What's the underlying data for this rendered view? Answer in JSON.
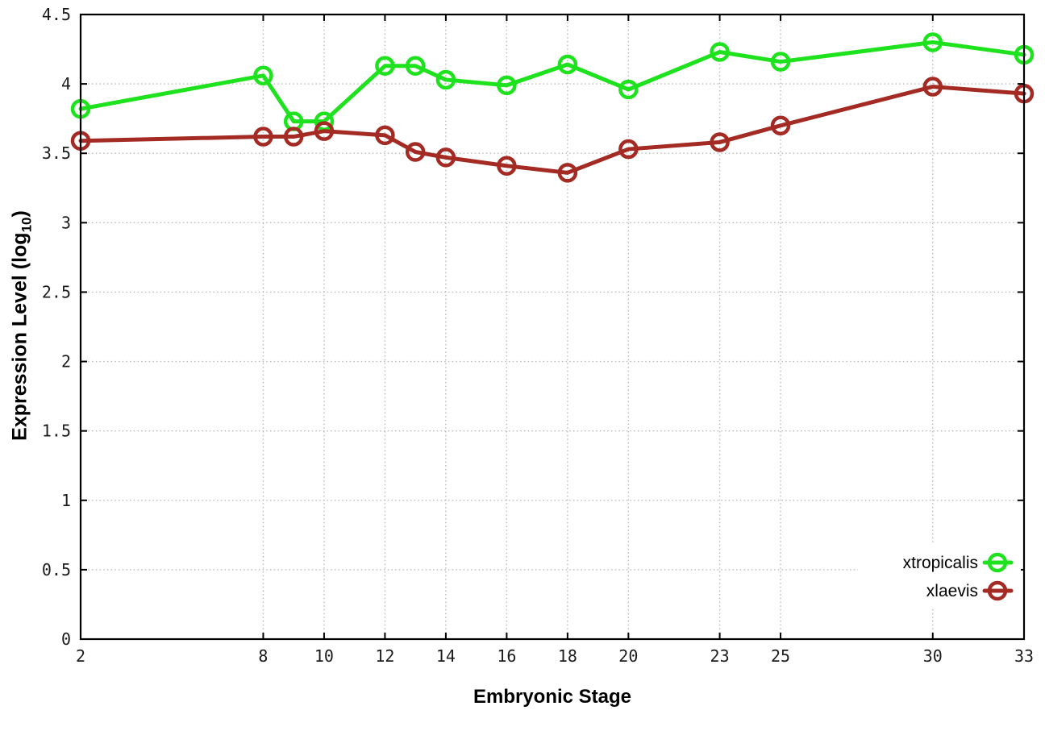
{
  "chart_data": {
    "type": "line",
    "title": "",
    "xlabel": "Embryonic Stage",
    "ylabel": {
      "prefix": "Expression Level (log",
      "sub": "10",
      "suffix": ")"
    },
    "xlim": [
      2,
      33
    ],
    "ylim": [
      0,
      4.5
    ],
    "grid": true,
    "legend_position": "bottom-right",
    "x_ticks": [
      {
        "v": 2,
        "label": "2"
      },
      {
        "v": 8,
        "label": "8"
      },
      {
        "v": 10,
        "label": "10"
      },
      {
        "v": 12,
        "label": "12"
      },
      {
        "v": 14,
        "label": "14"
      },
      {
        "v": 16,
        "label": "16"
      },
      {
        "v": 18,
        "label": "18"
      },
      {
        "v": 20,
        "label": "20"
      },
      {
        "v": 23,
        "label": "23"
      },
      {
        "v": 25,
        "label": "25"
      },
      {
        "v": 30,
        "label": "30"
      },
      {
        "v": 33,
        "label": "33"
      }
    ],
    "y_ticks": [
      {
        "v": 0,
        "label": "0"
      },
      {
        "v": 0.5,
        "label": "0.5"
      },
      {
        "v": 1,
        "label": "1"
      },
      {
        "v": 1.5,
        "label": "1.5"
      },
      {
        "v": 2,
        "label": "2"
      },
      {
        "v": 2.5,
        "label": "2.5"
      },
      {
        "v": 3,
        "label": "3"
      },
      {
        "v": 3.5,
        "label": "3.5"
      },
      {
        "v": 4,
        "label": "4"
      },
      {
        "v": 4.5,
        "label": "4.5"
      }
    ],
    "x": [
      2,
      8,
      9,
      10,
      12,
      13,
      14,
      16,
      18,
      20,
      23,
      25,
      30,
      33
    ],
    "series": [
      {
        "name": "xtropicalis",
        "color": "#1de21d",
        "values": [
          3.82,
          4.06,
          3.73,
          3.73,
          4.13,
          4.13,
          4.03,
          3.99,
          4.14,
          3.96,
          4.23,
          4.16,
          4.3,
          4.21
        ]
      },
      {
        "name": "xlaevis",
        "color": "#a42a24",
        "values": [
          3.59,
          3.62,
          3.62,
          3.66,
          3.63,
          3.51,
          3.47,
          3.41,
          3.36,
          3.53,
          3.58,
          3.7,
          3.98,
          3.93
        ]
      }
    ]
  },
  "colors": {
    "grid": "#b9b9b9",
    "axis": "#000000",
    "tick_text": "#1c1c1c"
  }
}
